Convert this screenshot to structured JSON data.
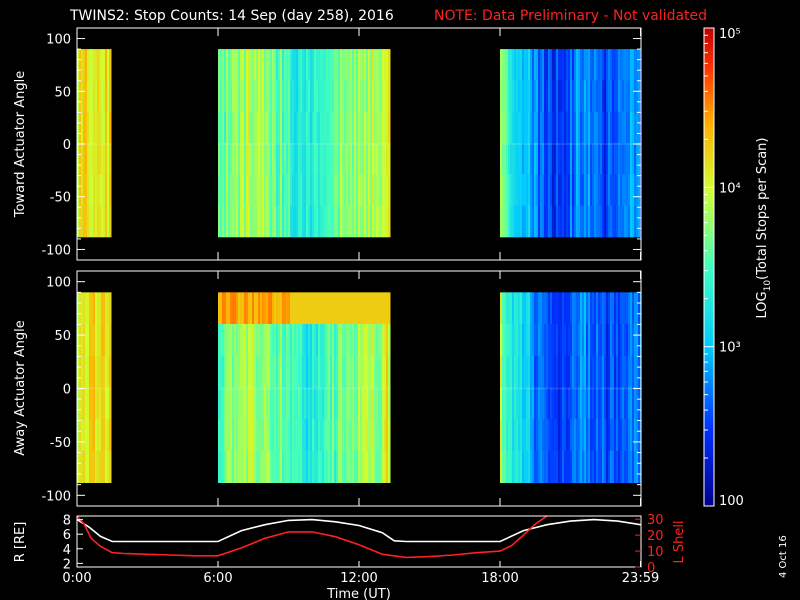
{
  "header": {
    "title": "TWINS2: Stop Counts: 14 Sep (day 258), 2016",
    "note": "NOTE: Data Preliminary - Not validated"
  },
  "colorbar": {
    "label": "LOG10(Total Stops per Scan)",
    "label_main": "LOG",
    "label_sub": "10",
    "label_rest": "(Total Stops per Scan)",
    "tick_labels": [
      "100",
      "10³",
      "10⁴",
      "10⁵"
    ],
    "range": [
      100,
      100000
    ],
    "scale": "log"
  },
  "timestamp": "4 Oct 16",
  "colors": {
    "background": "#000000",
    "note": "#ff2020",
    "lshell": "#ff2020",
    "r_curve": "#ffffff"
  },
  "chart_data": [
    {
      "type": "heatmap",
      "name": "toward-panel",
      "ylabel": "Toward Actuator Angle",
      "ylim": [
        -110,
        110
      ],
      "yticks": [
        100,
        50,
        0,
        -50,
        -100
      ],
      "xlim": [
        0,
        24
      ],
      "data_intervals_hours": [
        [
          0.0,
          1.4
        ],
        [
          6.0,
          13.3
        ],
        [
          18.0,
          23.99
        ]
      ],
      "angle_range": [
        -88,
        90
      ],
      "colorscale": "log",
      "value_range": [
        100,
        100000
      ]
    },
    {
      "type": "heatmap",
      "name": "away-panel",
      "ylabel": "Away Actuator Angle",
      "ylim": [
        -110,
        110
      ],
      "yticks": [
        100,
        50,
        0,
        -50,
        -100
      ],
      "xlim": [
        0,
        24
      ],
      "data_intervals_hours": [
        [
          0.0,
          1.4
        ],
        [
          6.0,
          13.3
        ],
        [
          18.0,
          23.99
        ]
      ],
      "angle_range": [
        -88,
        90
      ],
      "colorscale": "log",
      "value_range": [
        100,
        100000
      ]
    },
    {
      "type": "line",
      "name": "orbit-panel",
      "ylabel_left": "R [RE]",
      "ylabel_right": "L Shell",
      "left_ticks": [
        "8",
        "6",
        "4",
        "2"
      ],
      "right_ticks": [
        "30",
        "20",
        "10",
        "0"
      ],
      "ylim_left": [
        1.5,
        8.5
      ],
      "ylim_right": [
        0,
        32
      ],
      "xlabel": "Time (UT)",
      "xticks": [
        "0:00",
        "6:00",
        "12:00",
        "18:00",
        "23:59"
      ],
      "xtick_hours": [
        0,
        6,
        12,
        18,
        23.98
      ],
      "series": [
        {
          "key": "R",
          "x": [
            0,
            0.5,
            1,
            1.5,
            2,
            3,
            4,
            5,
            6,
            7,
            8,
            9,
            10,
            11,
            12,
            13,
            13.5,
            14,
            15,
            16,
            17,
            18,
            19,
            20,
            21,
            22,
            23,
            23.98
          ],
          "y": [
            8.0,
            7.0,
            5.7,
            5.0,
            5.0,
            5.0,
            5.0,
            5.0,
            5.0,
            6.5,
            7.3,
            7.9,
            8.0,
            7.7,
            7.2,
            6.2,
            5.1,
            5.0,
            5.0,
            5.0,
            5.0,
            5.0,
            6.5,
            7.3,
            7.8,
            8.0,
            7.8,
            7.3
          ]
        },
        {
          "key": "L",
          "x": [
            0,
            0.3,
            0.6,
            1,
            1.5,
            2,
            3,
            4,
            5,
            6,
            7,
            8,
            9,
            10,
            11,
            12,
            13,
            14,
            15,
            16,
            17,
            18,
            18.5,
            19,
            19.5,
            20
          ],
          "y": [
            32,
            27,
            18,
            13,
            9,
            8.5,
            8,
            7.5,
            7,
            7,
            12,
            18,
            22,
            22,
            19,
            14,
            8,
            6,
            6.5,
            7.5,
            9,
            10,
            13.5,
            20,
            27,
            32
          ]
        }
      ]
    }
  ]
}
